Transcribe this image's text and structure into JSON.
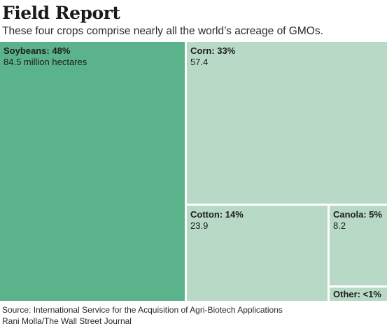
{
  "header": {
    "title": "Field Report",
    "subtitle": "These four crops comprise nearly all the world’s acreage of GMOs."
  },
  "footer": {
    "source": "Source: International Service for the Acquisition of Agri-Biotech Applications",
    "credit": "Rani Molla/The Wall Street Journal"
  },
  "colors": {
    "primary": "#5ab38b",
    "secondary": "#b8d9c6",
    "separator": "#ffffff"
  },
  "chart_data": {
    "type": "treemap",
    "title": "Field Report",
    "subtitle": "These four crops comprise nearly all the world’s acreage of GMOs.",
    "unit": "million hectares",
    "items": [
      {
        "label": "Soybeans: 48%",
        "value_text": "84.5 million hectares",
        "name": "Soybeans",
        "percent": 48,
        "value": 84.5,
        "highlight": true
      },
      {
        "label": "Corn: 33%",
        "value_text": "57.4",
        "name": "Corn",
        "percent": 33,
        "value": 57.4,
        "highlight": false
      },
      {
        "label": "Cotton: 14%",
        "value_text": "23.9",
        "name": "Cotton",
        "percent": 14,
        "value": 23.9,
        "highlight": false
      },
      {
        "label": "Canola: 5%",
        "value_text": "8.2",
        "name": "Canola",
        "percent": 5,
        "value": 8.2,
        "highlight": false
      },
      {
        "label": "Other: <1%",
        "value_text": "",
        "name": "Other",
        "percent": 1,
        "value": null,
        "highlight": false
      }
    ]
  }
}
